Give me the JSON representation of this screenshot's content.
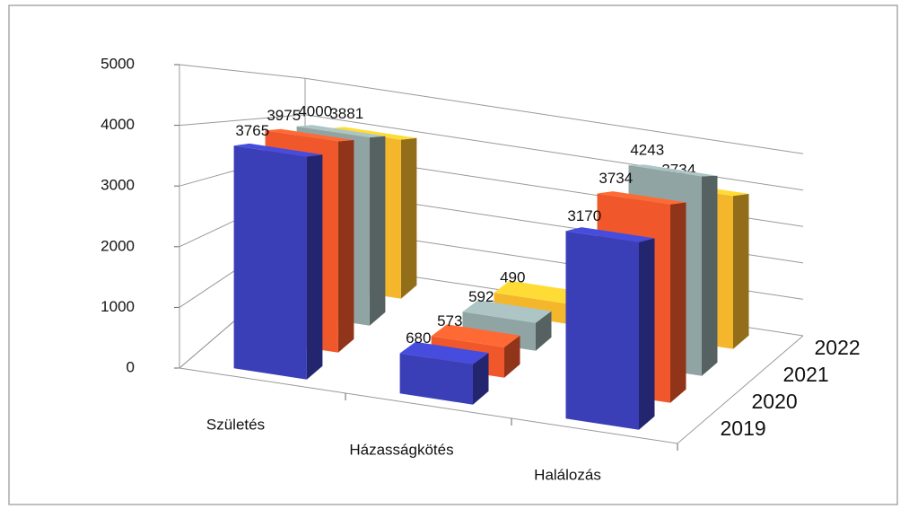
{
  "chart_data": {
    "type": "bar3d",
    "categories": [
      "Születés",
      "Házasságkötés",
      "Halálozás"
    ],
    "series": [
      {
        "name": "2019",
        "color": "#3a3fb8",
        "values": [
          3765,
          680,
          3170
        ]
      },
      {
        "name": "2020",
        "color": "#f0582b",
        "values": [
          3975,
          573,
          3734
        ]
      },
      {
        "name": "2021",
        "color": "#90a4a4",
        "values": [
          4000,
          592,
          4243
        ]
      },
      {
        "name": "2022",
        "color": "#f4b72c",
        "values": [
          3881,
          490,
          3734
        ]
      }
    ],
    "ylim": [
      0,
      5000
    ],
    "yticks": [
      0,
      1000,
      2000,
      3000,
      4000,
      5000
    ],
    "grid": true
  }
}
